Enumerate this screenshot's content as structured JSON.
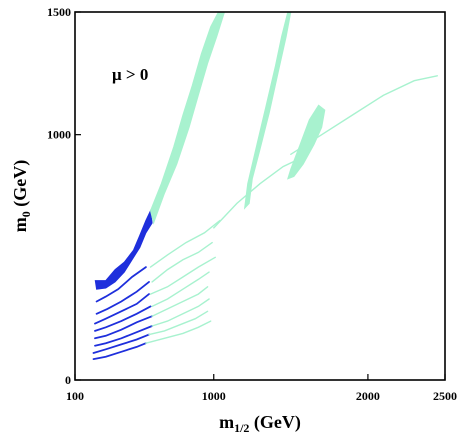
{
  "chart_data": {
    "type": "area",
    "xlim": [
      100,
      2500
    ],
    "ylim": [
      0,
      1500
    ],
    "x_ticks": [
      {
        "value": 100,
        "label": "100"
      },
      {
        "value": 1000,
        "label": "1000"
      },
      {
        "value": 2000,
        "label": "2000"
      },
      {
        "value": 2500,
        "label": "2500"
      }
    ],
    "y_ticks": [
      {
        "value": 0,
        "label": "0"
      },
      {
        "value": 1000,
        "label": "1000"
      },
      {
        "value": 1500,
        "label": "1500"
      }
    ],
    "xlabel_main": "m",
    "xlabel_sub": "1/2",
    "xlabel_unit": " (GeV)",
    "ylabel_main": "m",
    "ylabel_sub": "0",
    "ylabel_unit": " (GeV)",
    "annotation": "μ > 0",
    "colors": {
      "dark": "#1e2fdc",
      "light": "#a8f2cf"
    },
    "regions": [
      {
        "color": "dark",
        "points": [
          [
            240,
            370
          ],
          [
            232,
            405
          ],
          [
            300,
            405
          ],
          [
            360,
            450
          ],
          [
            420,
            480
          ],
          [
            480,
            530
          ],
          [
            520,
            590
          ],
          [
            560,
            650
          ],
          [
            590,
            690
          ],
          [
            600,
            640
          ],
          [
            560,
            600
          ],
          [
            520,
            540
          ],
          [
            470,
            490
          ],
          [
            420,
            440
          ],
          [
            360,
            400
          ],
          [
            300,
            375
          ]
        ]
      },
      {
        "color": "light",
        "points": [
          [
            590,
            690
          ],
          [
            660,
            800
          ],
          [
            740,
            950
          ],
          [
            800,
            1080
          ],
          [
            860,
            1200
          ],
          [
            920,
            1330
          ],
          [
            980,
            1440
          ],
          [
            1030,
            1500
          ],
          [
            1070,
            1500
          ],
          [
            1020,
            1400
          ],
          [
            960,
            1290
          ],
          [
            900,
            1160
          ],
          [
            840,
            1030
          ],
          [
            760,
            880
          ],
          [
            680,
            760
          ],
          [
            610,
            640
          ]
        ]
      },
      {
        "color": "light",
        "points": [
          [
            1200,
            700
          ],
          [
            1220,
            800
          ],
          [
            1280,
            960
          ],
          [
            1340,
            1120
          ],
          [
            1400,
            1280
          ],
          [
            1440,
            1400
          ],
          [
            1480,
            1500
          ],
          [
            1500,
            1500
          ],
          [
            1470,
            1400
          ],
          [
            1420,
            1260
          ],
          [
            1360,
            1090
          ],
          [
            1300,
            940
          ],
          [
            1250,
            820
          ],
          [
            1230,
            720
          ]
        ]
      },
      {
        "color": "light",
        "points": [
          [
            1480,
            820
          ],
          [
            1500,
            860
          ],
          [
            1560,
            960
          ],
          [
            1620,
            1060
          ],
          [
            1680,
            1120
          ],
          [
            1720,
            1100
          ],
          [
            1700,
            1030
          ],
          [
            1650,
            960
          ],
          [
            1580,
            880
          ],
          [
            1520,
            830
          ]
        ]
      }
    ],
    "bands": [
      {
        "color": "dark",
        "points": [
          [
            240,
            320
          ],
          [
            300,
            340
          ],
          [
            380,
            370
          ],
          [
            470,
            420
          ],
          [
            560,
            460
          ]
        ]
      },
      {
        "color": "dark",
        "points": [
          [
            240,
            270
          ],
          [
            310,
            290
          ],
          [
            400,
            320
          ],
          [
            500,
            360
          ],
          [
            580,
            400
          ]
        ]
      },
      {
        "color": "dark",
        "points": [
          [
            230,
            230
          ],
          [
            300,
            250
          ],
          [
            400,
            280
          ],
          [
            500,
            310
          ],
          [
            580,
            350
          ]
        ]
      },
      {
        "color": "dark",
        "points": [
          [
            230,
            200
          ],
          [
            300,
            215
          ],
          [
            400,
            240
          ],
          [
            500,
            270
          ],
          [
            590,
            300
          ]
        ]
      },
      {
        "color": "dark",
        "points": [
          [
            230,
            170
          ],
          [
            300,
            180
          ],
          [
            400,
            205
          ],
          [
            500,
            235
          ],
          [
            600,
            260
          ]
        ]
      },
      {
        "color": "dark",
        "points": [
          [
            230,
            140
          ],
          [
            300,
            150
          ],
          [
            400,
            170
          ],
          [
            500,
            195
          ],
          [
            600,
            220
          ]
        ]
      },
      {
        "color": "dark",
        "points": [
          [
            220,
            110
          ],
          [
            300,
            125
          ],
          [
            400,
            145
          ],
          [
            500,
            165
          ],
          [
            580,
            185
          ]
        ]
      },
      {
        "color": "dark",
        "points": [
          [
            220,
            85
          ],
          [
            300,
            95
          ],
          [
            400,
            115
          ],
          [
            500,
            135
          ],
          [
            560,
            150
          ]
        ]
      },
      {
        "color": "light",
        "points": [
          [
            590,
            460
          ],
          [
            700,
            510
          ],
          [
            820,
            560
          ],
          [
            940,
            600
          ],
          [
            1040,
            650
          ]
        ]
      },
      {
        "color": "light",
        "points": [
          [
            600,
            400
          ],
          [
            700,
            450
          ],
          [
            800,
            490
          ],
          [
            900,
            520
          ],
          [
            990,
            560
          ]
        ]
      },
      {
        "color": "light",
        "points": [
          [
            590,
            350
          ],
          [
            700,
            380
          ],
          [
            800,
            420
          ],
          [
            900,
            460
          ],
          [
            1010,
            500
          ]
        ]
      },
      {
        "color": "light",
        "points": [
          [
            600,
            300
          ],
          [
            700,
            330
          ],
          [
            800,
            370
          ],
          [
            900,
            410
          ],
          [
            970,
            440
          ]
        ]
      },
      {
        "color": "light",
        "points": [
          [
            600,
            260
          ],
          [
            700,
            290
          ],
          [
            800,
            320
          ],
          [
            900,
            350
          ],
          [
            960,
            380
          ]
        ]
      },
      {
        "color": "light",
        "points": [
          [
            600,
            220
          ],
          [
            700,
            240
          ],
          [
            800,
            270
          ],
          [
            900,
            300
          ],
          [
            970,
            330
          ]
        ]
      },
      {
        "color": "light",
        "points": [
          [
            580,
            185
          ],
          [
            680,
            200
          ],
          [
            780,
            225
          ],
          [
            880,
            250
          ],
          [
            960,
            280
          ]
        ]
      },
      {
        "color": "light",
        "points": [
          [
            560,
            150
          ],
          [
            680,
            170
          ],
          [
            800,
            190
          ],
          [
            900,
            215
          ],
          [
            980,
            240
          ]
        ]
      },
      {
        "color": "light",
        "points": [
          [
            1000,
            620
          ],
          [
            1150,
            720
          ],
          [
            1300,
            800
          ],
          [
            1450,
            870
          ],
          [
            1550,
            900
          ]
        ]
      },
      {
        "color": "light",
        "points": [
          [
            1500,
            920
          ],
          [
            1700,
            1000
          ],
          [
            1900,
            1080
          ],
          [
            2100,
            1160
          ],
          [
            2300,
            1220
          ],
          [
            2450,
            1240
          ]
        ]
      }
    ]
  }
}
